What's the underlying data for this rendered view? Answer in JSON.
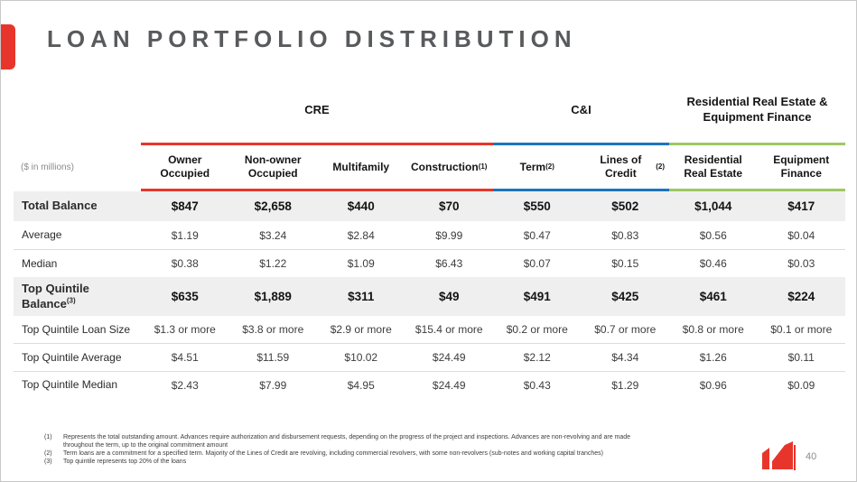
{
  "slide": {
    "title": "LOAN PORTFOLIO DISTRIBUTION",
    "page_number": "40",
    "accent_color": "#e8352b"
  },
  "table": {
    "units_label": "($ in millions)",
    "groups": [
      {
        "label": "CRE",
        "color": "#e8352b",
        "span": 4
      },
      {
        "label": "C&I",
        "color": "#1b75bc",
        "span": 2
      },
      {
        "label": "Residential Real Estate & Equipment Finance",
        "color": "#9dc963",
        "span": 2
      }
    ],
    "columns": [
      {
        "label": "Owner Occupied",
        "sup": ""
      },
      {
        "label": "Non-owner Occupied",
        "sup": ""
      },
      {
        "label": "Multifamily",
        "sup": ""
      },
      {
        "label": "Construction",
        "sup": "(1)"
      },
      {
        "label": "Term",
        "sup": "(2)"
      },
      {
        "label": "Lines of Credit",
        "sup": "(2)"
      },
      {
        "label": "Residential Real Estate",
        "sup": ""
      },
      {
        "label": "Equipment Finance",
        "sup": ""
      }
    ],
    "rows": [
      {
        "label": "Total Balance",
        "sup": "",
        "bold": true,
        "values": [
          "$847",
          "$2,658",
          "$440",
          "$70",
          "$550",
          "$502",
          "$1,044",
          "$417"
        ]
      },
      {
        "label": "Average",
        "sup": "",
        "bold": false,
        "values": [
          "$1.19",
          "$3.24",
          "$2.84",
          "$9.99",
          "$0.47",
          "$0.83",
          "$0.56",
          "$0.04"
        ]
      },
      {
        "label": "Median",
        "sup": "",
        "bold": false,
        "values": [
          "$0.38",
          "$1.22",
          "$1.09",
          "$6.43",
          "$0.07",
          "$0.15",
          "$0.46",
          "$0.03"
        ]
      },
      {
        "label": "Top Quintile Balance",
        "sup": "(3)",
        "bold": true,
        "values": [
          "$635",
          "$1,889",
          "$311",
          "$49",
          "$491",
          "$425",
          "$461",
          "$224"
        ]
      },
      {
        "label": "Top Quintile Loan Size",
        "sup": "",
        "bold": false,
        "values": [
          "$1.3 or more",
          "$3.8 or more",
          "$2.9 or more",
          "$15.4 or more",
          "$0.2 or more",
          "$0.7 or more",
          "$0.8 or more",
          "$0.1 or more"
        ]
      },
      {
        "label": "Top Quintile Average",
        "sup": "",
        "bold": false,
        "values": [
          "$4.51",
          "$11.59",
          "$10.02",
          "$24.49",
          "$2.12",
          "$4.34",
          "$1.26",
          "$0.11"
        ]
      },
      {
        "label": "Top Quintile Median",
        "sup": "",
        "bold": false,
        "values": [
          "$2.43",
          "$7.99",
          "$4.95",
          "$24.49",
          "$0.43",
          "$1.29",
          "$0.96",
          "$0.09"
        ]
      }
    ]
  },
  "footnotes": [
    {
      "marker": "(1)",
      "text": "Represents the total outstanding amount. Advances require authorization and disbursement requests, depending on the progress of the project and inspections. Advances are non-revolving and are made throughout the term, up to the original commitment amount"
    },
    {
      "marker": "(2)",
      "text": "Term loans are a commitment for a specified term. Majority of the Lines of Credit are revolving, including commercial revolvers, with some non-revolvers (sub-notes and working capital tranches)"
    },
    {
      "marker": "(3)",
      "text": "Top quintile represents top 20% of the loans"
    }
  ]
}
